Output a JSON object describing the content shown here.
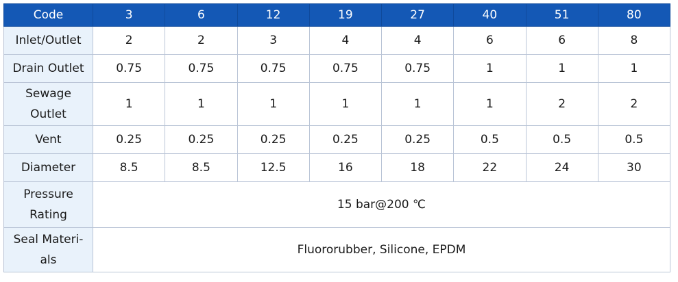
{
  "table": {
    "header": {
      "label": "Code",
      "codes": [
        "3",
        "6",
        "12",
        "19",
        "27",
        "40",
        "51",
        "80"
      ]
    },
    "rows": {
      "inlet_outlet": {
        "label": "Inlet/Outlet",
        "values": [
          "2",
          "2",
          "3",
          "4",
          "4",
          "6",
          "6",
          "8"
        ]
      },
      "drain_outlet": {
        "label": "Drain Outlet",
        "values": [
          "0.75",
          "0.75",
          "0.75",
          "0.75",
          "0.75",
          "1",
          "1",
          "1"
        ]
      },
      "sewage_outlet": {
        "label": "Sewage Outlet",
        "values": [
          "1",
          "1",
          "1",
          "1",
          "1",
          "1",
          "2",
          "2"
        ]
      },
      "vent": {
        "label": "Vent",
        "values": [
          "0.25",
          "0.25",
          "0.25",
          "0.25",
          "0.25",
          "0.5",
          "0.5",
          "0.5"
        ]
      },
      "diameter": {
        "label": "Diameter",
        "values": [
          "8.5",
          "8.5",
          "12.5",
          "16",
          "18",
          "22",
          "24",
          "30"
        ]
      },
      "pressure_rating": {
        "label": "Pressure Rating",
        "value": "15 bar@200 ℃"
      },
      "seal_materials": {
        "label": "Seal Materi-als",
        "value": "Fluororubber, Silicone, EPDM"
      }
    }
  },
  "colors": {
    "header_bg": "#1458b5",
    "label_bg": "#e9f2fb",
    "border": "#b9c4d6"
  }
}
